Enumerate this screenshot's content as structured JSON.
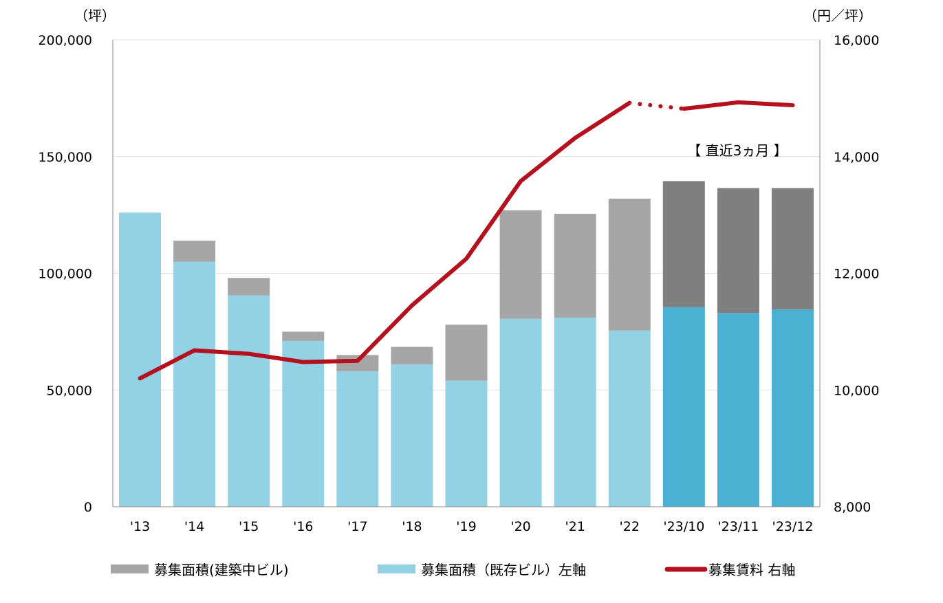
{
  "chart_data": {
    "type": "bar",
    "categories": [
      "'13",
      "'14",
      "'15",
      "'16",
      "'17",
      "'18",
      "'19",
      "'20",
      "'21",
      "'22",
      "'23/10",
      "'23/11",
      "'23/12"
    ],
    "series": [
      {
        "name": "募集面積（既存ビル）左軸",
        "type": "bar",
        "axis": "left",
        "values": [
          126000,
          105000,
          90500,
          71000,
          58000,
          61000,
          54000,
          80500,
          81000,
          75500,
          85500,
          83000,
          84500
        ],
        "colors": [
          "#93d1e4",
          "#93d1e4",
          "#93d1e4",
          "#93d1e4",
          "#93d1e4",
          "#93d1e4",
          "#93d1e4",
          "#93d1e4",
          "#93d1e4",
          "#93d1e4",
          "#4bb1d3",
          "#4bb1d3",
          "#4bb1d3"
        ]
      },
      {
        "name": "募集面積（建築中ビル）",
        "type": "bar",
        "axis": "left",
        "values": [
          0,
          9000,
          7500,
          4000,
          7000,
          7500,
          24000,
          46500,
          44500,
          56500,
          54000,
          53500,
          52000
        ],
        "colors": [
          "#a6a6a6",
          "#a6a6a6",
          "#a6a6a6",
          "#a6a6a6",
          "#a6a6a6",
          "#a6a6a6",
          "#a6a6a6",
          "#a6a6a6",
          "#a6a6a6",
          "#a6a6a6",
          "#7f7f7f",
          "#7f7f7f",
          "#7f7f7f"
        ]
      },
      {
        "name": "募集賃料 右軸",
        "type": "line",
        "axis": "right",
        "values": [
          10200,
          10680,
          10620,
          10480,
          10500,
          11450,
          12250,
          13580,
          14320,
          14920,
          14820,
          14930,
          14880
        ],
        "color": "#b5101d"
      }
    ],
    "title": "",
    "xlabel": "",
    "ylabel": "（坪）",
    "y2label": "（円／坪）",
    "ylim": [
      0,
      200000
    ],
    "y2lim": [
      8000,
      16000
    ],
    "yticks": [
      "0",
      "50,000",
      "100,000",
      "150,000",
      "200,000"
    ],
    "y2ticks": [
      "8,000",
      "10,000",
      "12,000",
      "14,000",
      "16,000"
    ],
    "grid": true,
    "legend_position": "bottom",
    "legend": [
      {
        "label": "募集面積(建築中ビル)",
        "color": "#a6a6a6",
        "kind": "bar"
      },
      {
        "label": "募集面積（既存ビル）左軸",
        "color": "#93d1e4",
        "kind": "bar"
      },
      {
        "label": "募集賃料 右軸",
        "color": "#b5101d",
        "kind": "line"
      }
    ],
    "annotation": "【 直近3ヵ月 】"
  }
}
